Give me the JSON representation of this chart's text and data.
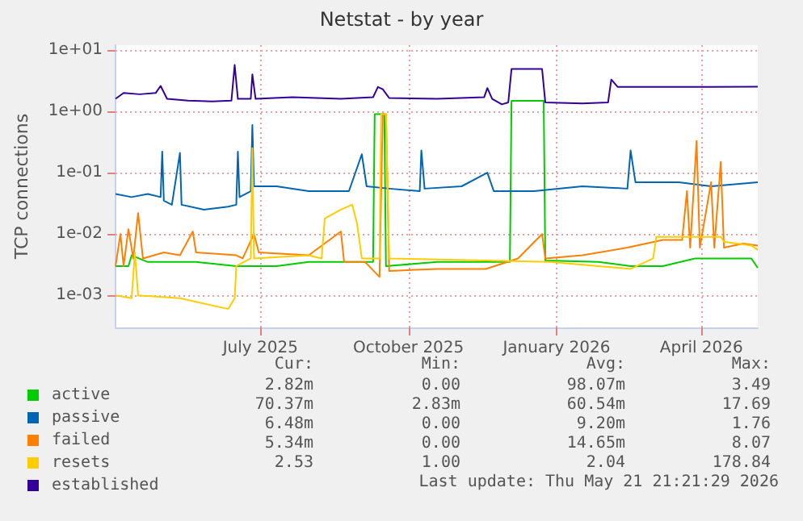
{
  "chart_data": {
    "type": "line",
    "title": "Netstat - by year",
    "ylabel": "TCP connections",
    "xlim": [
      "2025-04-17",
      "2026-05-21"
    ],
    "xticks": [
      {
        "value": "2025-07-16",
        "label": "July 2025"
      },
      {
        "value": "2025-10-16",
        "label": "October 2025"
      },
      {
        "value": "2026-01-16",
        "label": "January 2026"
      },
      {
        "value": "2026-04-16",
        "label": "April 2026"
      }
    ],
    "ylim": [
      0.0003,
      12
    ],
    "yticks": [
      {
        "value": 0.001,
        "label": "1e-03"
      },
      {
        "value": 0.01,
        "label": "1e-02"
      },
      {
        "value": 0.1,
        "label": "1e-01"
      },
      {
        "value": 1,
        "label": "1e+00"
      },
      {
        "value": 10,
        "label": "1e+01"
      }
    ],
    "log": "y",
    "grid": true,
    "legend": "bottom",
    "marker": "none",
    "series": [
      {
        "name": "active",
        "color": "#00cc00",
        "x": [
          "2025-04-17",
          "2025-04-25",
          "2025-04-27",
          "2025-05-07",
          "2025-06-06",
          "2025-07-01",
          "2025-07-26",
          "2025-08-15",
          "2025-09-24",
          "2025-09-25",
          "2025-10-01",
          "2025-10-02",
          "2025-11-03",
          "2025-12-18",
          "2025-12-19",
          "2026-01-08",
          "2026-01-09",
          "2026-02-11",
          "2026-03-03",
          "2026-03-23",
          "2026-04-12",
          "2026-05-17",
          "2026-05-21"
        ],
        "values": [
          0.003,
          0.003,
          0.0045,
          0.0035,
          0.0035,
          0.003,
          0.003,
          0.0035,
          0.0035,
          0.9,
          0.9,
          0.003,
          0.0035,
          0.0035,
          1.49,
          1.49,
          0.0037,
          0.0035,
          0.003,
          0.003,
          0.004,
          0.004,
          0.0028
        ]
      },
      {
        "name": "passive",
        "color": "#0066b3",
        "x": [
          "2025-04-17",
          "2025-04-27",
          "2025-05-07",
          "2025-05-15",
          "2025-05-16",
          "2025-05-17",
          "2025-05-22",
          "2025-05-27",
          "2025-05-28",
          "2025-06-11",
          "2025-06-26",
          "2025-07-01",
          "2025-07-02",
          "2025-07-03",
          "2025-07-10",
          "2025-07-11",
          "2025-07-12",
          "2025-07-26",
          "2025-08-15",
          "2025-09-09",
          "2025-09-17",
          "2025-09-20",
          "2025-10-04",
          "2025-10-23",
          "2025-10-24",
          "2025-10-26",
          "2025-11-18",
          "2025-12-04",
          "2025-12-08",
          "2026-01-02",
          "2026-02-01",
          "2026-03-01",
          "2026-03-03",
          "2026-03-06",
          "2026-04-02",
          "2026-04-22",
          "2026-05-21"
        ],
        "values": [
          0.045,
          0.04,
          0.045,
          0.04,
          0.22,
          0.035,
          0.03,
          0.21,
          0.03,
          0.025,
          0.028,
          0.03,
          0.22,
          0.04,
          0.05,
          0.6,
          0.06,
          0.06,
          0.05,
          0.05,
          0.2,
          0.06,
          0.055,
          0.05,
          0.23,
          0.055,
          0.06,
          0.1,
          0.05,
          0.05,
          0.06,
          0.055,
          0.23,
          0.07,
          0.07,
          0.06,
          0.07
        ]
      },
      {
        "name": "failed",
        "color": "#ff8000",
        "x": [
          "2025-04-17",
          "2025-04-20",
          "2025-04-22",
          "2025-04-25",
          "2025-04-28",
          "2025-05-01",
          "2025-05-04",
          "2025-05-17",
          "2025-05-27",
          "2025-06-04",
          "2025-06-06",
          "2025-07-01",
          "2025-07-05",
          "2025-07-12",
          "2025-07-15",
          "2025-08-15",
          "2025-09-04",
          "2025-09-06",
          "2025-09-19",
          "2025-09-28",
          "2025-09-30",
          "2025-10-02",
          "2025-10-04",
          "2025-11-03",
          "2025-12-03",
          "2025-12-23",
          "2026-01-07",
          "2026-01-09",
          "2026-02-01",
          "2026-03-01",
          "2026-03-23",
          "2026-04-04",
          "2026-04-07",
          "2026-04-09",
          "2026-04-13",
          "2026-04-15",
          "2026-04-22",
          "2026-04-24",
          "2026-04-28",
          "2026-04-30",
          "2026-05-12",
          "2026-05-21"
        ],
        "values": [
          0.003,
          0.01,
          0.003,
          0.012,
          0.004,
          0.022,
          0.004,
          0.005,
          0.0045,
          0.011,
          0.005,
          0.0045,
          0.004,
          0.01,
          0.005,
          0.0045,
          0.011,
          0.0035,
          0.0035,
          0.002,
          0.9,
          0.9,
          0.0025,
          0.0027,
          0.0027,
          0.004,
          0.01,
          0.004,
          0.0045,
          0.006,
          0.008,
          0.008,
          0.05,
          0.006,
          0.33,
          0.006,
          0.07,
          0.006,
          0.15,
          0.006,
          0.007,
          0.0065
        ]
      },
      {
        "name": "resets",
        "color": "#ffcc00",
        "x": [
          "2025-04-17",
          "2025-04-27",
          "2025-04-29",
          "2025-05-01",
          "2025-05-27",
          "2025-06-26",
          "2025-06-30",
          "2025-07-01",
          "2025-07-10",
          "2025-07-11",
          "2025-07-12",
          "2025-08-15",
          "2025-08-23",
          "2025-08-25",
          "2025-09-04",
          "2025-09-11",
          "2025-09-14",
          "2025-09-17",
          "2025-09-28",
          "2025-09-29",
          "2025-10-02",
          "2025-10-04",
          "2025-12-03",
          "2026-01-12",
          "2026-02-11",
          "2026-03-03",
          "2026-03-17",
          "2026-03-19",
          "2026-04-12",
          "2026-04-28",
          "2026-04-30",
          "2026-05-17",
          "2026-05-21"
        ],
        "values": [
          0.001,
          0.0009,
          0.005,
          0.001,
          0.0009,
          0.0006,
          0.0009,
          0.003,
          0.004,
          0.25,
          0.004,
          0.0045,
          0.004,
          0.018,
          0.025,
          0.03,
          0.015,
          0.004,
          0.004,
          0.9,
          0.9,
          0.004,
          0.0037,
          0.0035,
          0.003,
          0.0027,
          0.004,
          0.009,
          0.009,
          0.009,
          0.0075,
          0.0065,
          0.0055
        ]
      },
      {
        "name": "established",
        "color": "#330099",
        "x": [
          "2025-04-17",
          "2025-04-22",
          "2025-05-02",
          "2025-05-12",
          "2025-05-15",
          "2025-05-19",
          "2025-06-01",
          "2025-06-16",
          "2025-06-28",
          "2025-06-30",
          "2025-07-02",
          "2025-07-10",
          "2025-07-11",
          "2025-07-13",
          "2025-08-05",
          "2025-09-04",
          "2025-09-24",
          "2025-09-27",
          "2025-09-30",
          "2025-10-04",
          "2025-11-03",
          "2025-12-02",
          "2025-12-04",
          "2025-12-07",
          "2025-12-13",
          "2025-12-17",
          "2025-12-19",
          "2026-01-07",
          "2026-01-09",
          "2026-02-01",
          "2026-02-17",
          "2026-02-19",
          "2026-02-23",
          "2026-03-23",
          "2026-04-22",
          "2026-05-21"
        ],
        "values": [
          1.6,
          2.0,
          1.9,
          2.0,
          2.6,
          1.6,
          1.5,
          1.45,
          1.5,
          5.7,
          1.6,
          1.6,
          4.0,
          1.6,
          1.7,
          1.6,
          1.7,
          2.5,
          2.3,
          1.65,
          1.6,
          1.7,
          2.4,
          1.6,
          1.3,
          1.4,
          4.9,
          4.9,
          1.4,
          1.35,
          1.4,
          3.3,
          2.5,
          2.5,
          2.5,
          2.53
        ]
      }
    ],
    "annotations": [
      "Cur:",
      "Min:",
      "Avg:",
      "Max:",
      "2.82m",
      "0.00",
      "98.07m",
      "3.49",
      "70.37m",
      "2.83m",
      "60.54m",
      "17.69",
      "6.48m",
      "0.00",
      "9.20m",
      "1.76",
      "5.34m",
      "0.00",
      "14.65m",
      "8.07",
      "2.53",
      "1.00",
      "2.04",
      "178.84",
      "Last update: Thu May 21 21:21:29 2026"
    ]
  }
}
